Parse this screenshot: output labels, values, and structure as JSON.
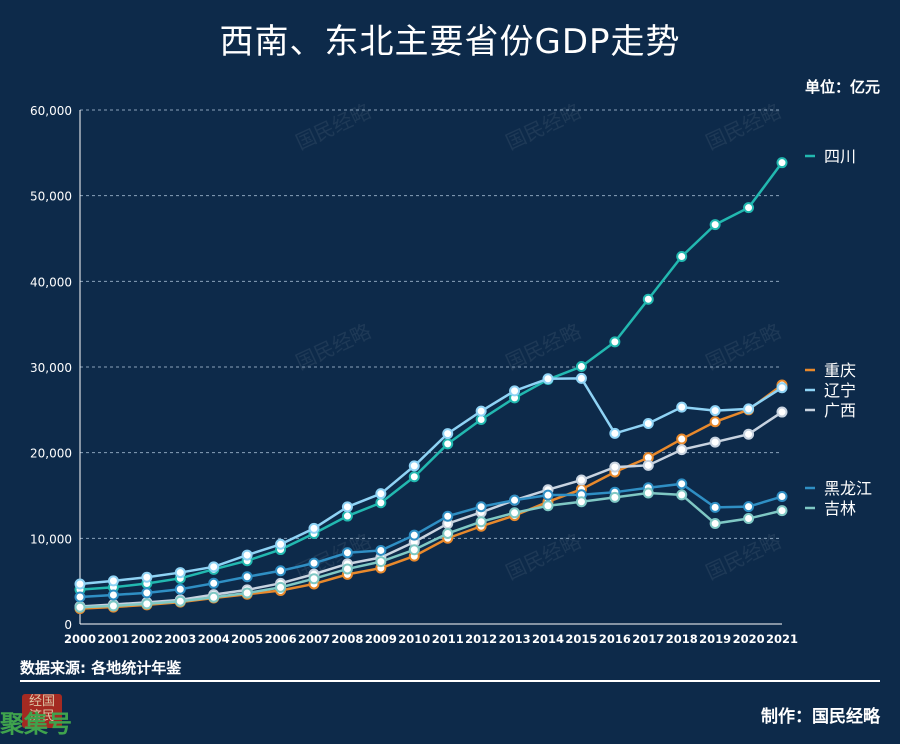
{
  "title": "西南、东北主要省份GDP走势",
  "unit_label": "单位：亿元",
  "source_label": "数据来源: 各地统计年鉴",
  "maker_label": "制作：国民经略",
  "watermark_text": "国民经略",
  "logo": {
    "seal": "经国\n济民",
    "text": "聚集号"
  },
  "chart_data": {
    "type": "line",
    "x": [
      2000,
      2001,
      2002,
      2003,
      2004,
      2005,
      2006,
      2007,
      2008,
      2009,
      2010,
      2011,
      2012,
      2013,
      2014,
      2015,
      2016,
      2017,
      2018,
      2019,
      2020,
      2021
    ],
    "ylim": [
      0,
      60000
    ],
    "yticks": [
      0,
      10000,
      20000,
      30000,
      40000,
      50000,
      60000
    ],
    "ytick_labels": [
      "0",
      "10,000",
      "20,000",
      "30,000",
      "40,000",
      "50,000",
      "60,000"
    ],
    "grid": true,
    "series": [
      {
        "name": "四川",
        "color": "#22b8b0",
        "values": [
          4010,
          4290,
          4725,
          5333,
          6380,
          7385,
          8690,
          10560,
          12600,
          14150,
          17185,
          21026,
          23873,
          26392,
          28537,
          30053,
          32935,
          37905,
          42902,
          46616,
          48599,
          53851
        ]
      },
      {
        "name": "重庆",
        "color": "#e8892c",
        "values": [
          1790,
          1977,
          2232,
          2555,
          3035,
          3468,
          3907,
          4676,
          5793,
          6530,
          7926,
          10011,
          11410,
          12657,
          14263,
          15717,
          17741,
          19425,
          21589,
          23606,
          25003,
          27894
        ]
      },
      {
        "name": "辽宁",
        "color": "#8fd3f5",
        "values": [
          4669,
          5033,
          5458,
          6003,
          6673,
          8047,
          9305,
          11164,
          13669,
          15212,
          18457,
          22227,
          24846,
          27213,
          28627,
          28669,
          22247,
          23409,
          25315,
          24909,
          25115,
          27584
        ]
      },
      {
        "name": "广西",
        "color": "#c8d3e0",
        "values": [
          2050,
          2279,
          2524,
          2821,
          3434,
          3984,
          4746,
          5823,
          7021,
          7759,
          9570,
          11721,
          13035,
          14450,
          15673,
          16803,
          18318,
          18523,
          20353,
          21237,
          22157,
          24741
        ]
      },
      {
        "name": "黑龙江",
        "color": "#2f8fc4",
        "values": [
          3151,
          3390,
          3637,
          4057,
          4751,
          5512,
          6212,
          7105,
          8314,
          8587,
          10369,
          12582,
          13692,
          14455,
          15039,
          15084,
          15386,
          15903,
          16362,
          13613,
          13699,
          14879
        ]
      },
      {
        "name": "吉林",
        "color": "#7fc8c4",
        "values": [
          1952,
          2120,
          2349,
          2662,
          3122,
          3620,
          4275,
          5285,
          6426,
          7279,
          8668,
          10569,
          11939,
          12981,
          13803,
          14274,
          14777,
          15289,
          15075,
          11727,
          12311,
          13235
        ]
      }
    ],
    "legend": "right"
  }
}
